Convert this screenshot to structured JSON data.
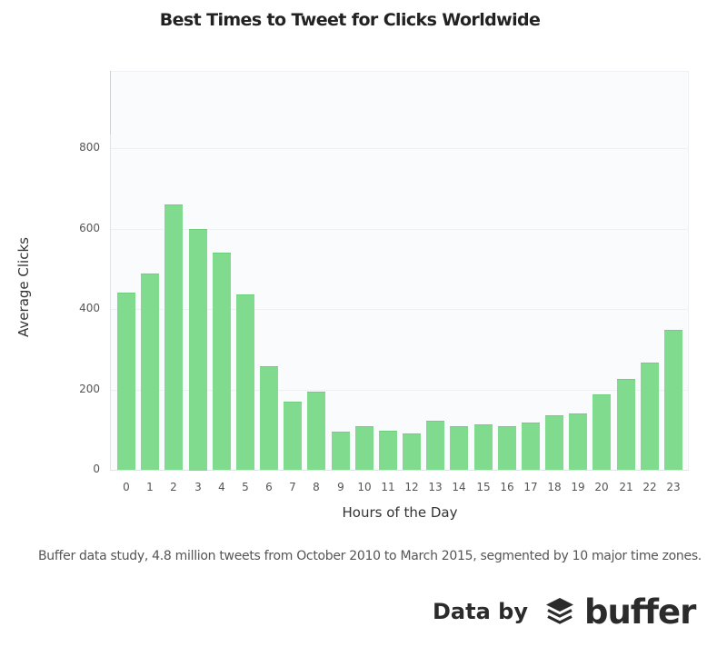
{
  "chart_data": {
    "type": "bar",
    "title": "Best Times to Tweet for Clicks Worldwide",
    "xlabel": "Hours of the Day",
    "ylabel": "Average Clicks",
    "categories": [
      "0",
      "1",
      "2",
      "3",
      "4",
      "5",
      "6",
      "7",
      "8",
      "9",
      "10",
      "11",
      "12",
      "13",
      "14",
      "15",
      "16",
      "17",
      "18",
      "19",
      "20",
      "21",
      "22",
      "23"
    ],
    "values": [
      440,
      488,
      660,
      600,
      541,
      436,
      257,
      170,
      194,
      95,
      108,
      98,
      90,
      122,
      108,
      114,
      108,
      117,
      135,
      141,
      187,
      225,
      267,
      347
    ],
    "yticks": [
      "0",
      "200",
      "400",
      "600",
      "800"
    ],
    "ylim": [
      0,
      1000
    ],
    "grid": true,
    "legend": null,
    "bar_color": "#80db8e"
  },
  "caption": "Buffer data study, 4.8 million tweets from October 2010 to March 2015, segmented by 10 major time zones.",
  "credit": {
    "label": "Data by",
    "brand": "buffer",
    "icon": "buffer-stack-icon"
  }
}
